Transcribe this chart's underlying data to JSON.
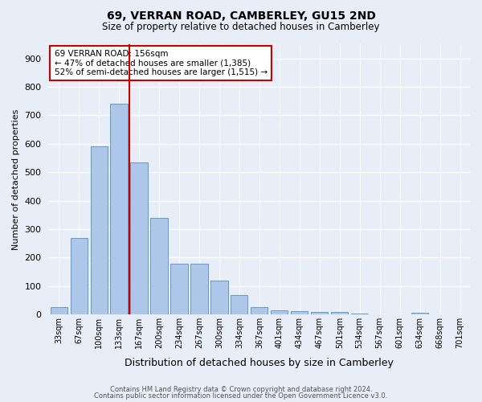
{
  "title": "69, VERRAN ROAD, CAMBERLEY, GU15 2ND",
  "subtitle": "Size of property relative to detached houses in Camberley",
  "xlabel": "Distribution of detached houses by size in Camberley",
  "ylabel": "Number of detached properties",
  "bar_labels": [
    "33sqm",
    "67sqm",
    "100sqm",
    "133sqm",
    "167sqm",
    "200sqm",
    "234sqm",
    "267sqm",
    "300sqm",
    "334sqm",
    "367sqm",
    "401sqm",
    "434sqm",
    "467sqm",
    "501sqm",
    "534sqm",
    "567sqm",
    "601sqm",
    "634sqm",
    "668sqm",
    "701sqm"
  ],
  "bar_values": [
    25,
    270,
    590,
    740,
    535,
    340,
    178,
    178,
    118,
    68,
    25,
    15,
    12,
    10,
    8,
    4,
    0,
    0,
    7,
    0,
    0
  ],
  "bar_color": "#aec6e8",
  "bar_edgecolor": "#6699cc",
  "vline_x": 3.5,
  "vline_color": "#cc0000",
  "annotation_text": "69 VERRAN ROAD: 156sqm\n← 47% of detached houses are smaller (1,385)\n52% of semi-detached houses are larger (1,515) →",
  "annotation_box_color": "#cc0000",
  "ylim": [
    0,
    950
  ],
  "yticks": [
    0,
    100,
    200,
    300,
    400,
    500,
    600,
    700,
    800,
    900
  ],
  "footer_line1": "Contains HM Land Registry data © Crown copyright and database right 2024.",
  "footer_line2": "Contains public sector information licensed under the Open Government Licence v3.0.",
  "bg_color": "#e8eef8",
  "plot_bg_color": "#e8eef8"
}
